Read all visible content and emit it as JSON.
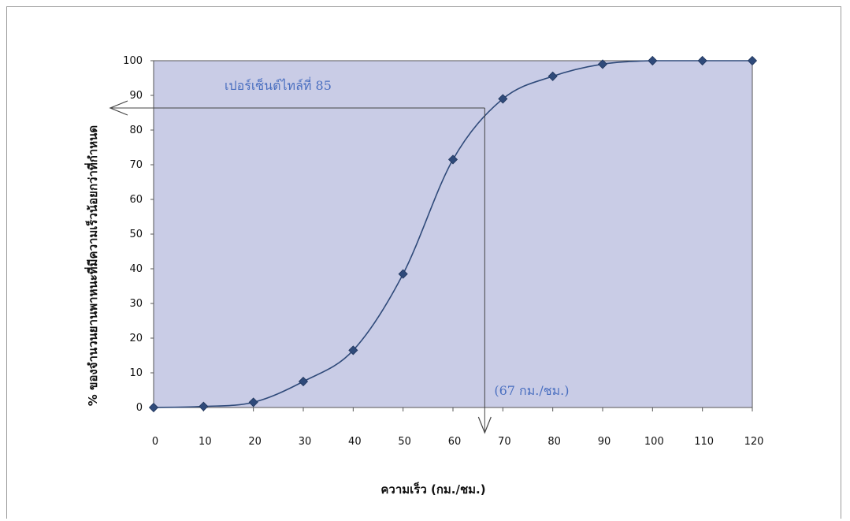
{
  "chart_data": {
    "type": "line",
    "x": [
      0,
      10,
      20,
      30,
      40,
      50,
      60,
      70,
      80,
      90,
      100,
      110,
      120
    ],
    "y": [
      0,
      0.3,
      1.5,
      7.5,
      16.5,
      38.5,
      71.5,
      89,
      95.5,
      99,
      100,
      100,
      100
    ],
    "xlabel": "ความเร็ว (กม./ชม.)",
    "ylabel": "% ของจำนวนยานพาหนะที่มีความเร็วน้อยกว่าที่กำหนด",
    "xlim": [
      0,
      120
    ],
    "ylim": [
      0,
      100
    ],
    "x_ticks": [
      "0",
      "10",
      "20",
      "30",
      "40",
      "50",
      "60",
      "70",
      "80",
      "90",
      "100",
      "110",
      "120"
    ],
    "y_ticks": [
      "0",
      "10",
      "20",
      "30",
      "40",
      "50",
      "60",
      "70",
      "80",
      "90",
      "100"
    ],
    "grid": false,
    "colors": {
      "plot_area": "#c9cce6",
      "series": "#2f4a7a",
      "annotation": "#4a6fc0"
    },
    "annotations": {
      "percentile_label": "เปอร์เซ็นต์ไทล์ที่ 85",
      "percentile_value": 85,
      "speed_label": "(67 กม./ชม.)",
      "speed_value": 67
    }
  }
}
